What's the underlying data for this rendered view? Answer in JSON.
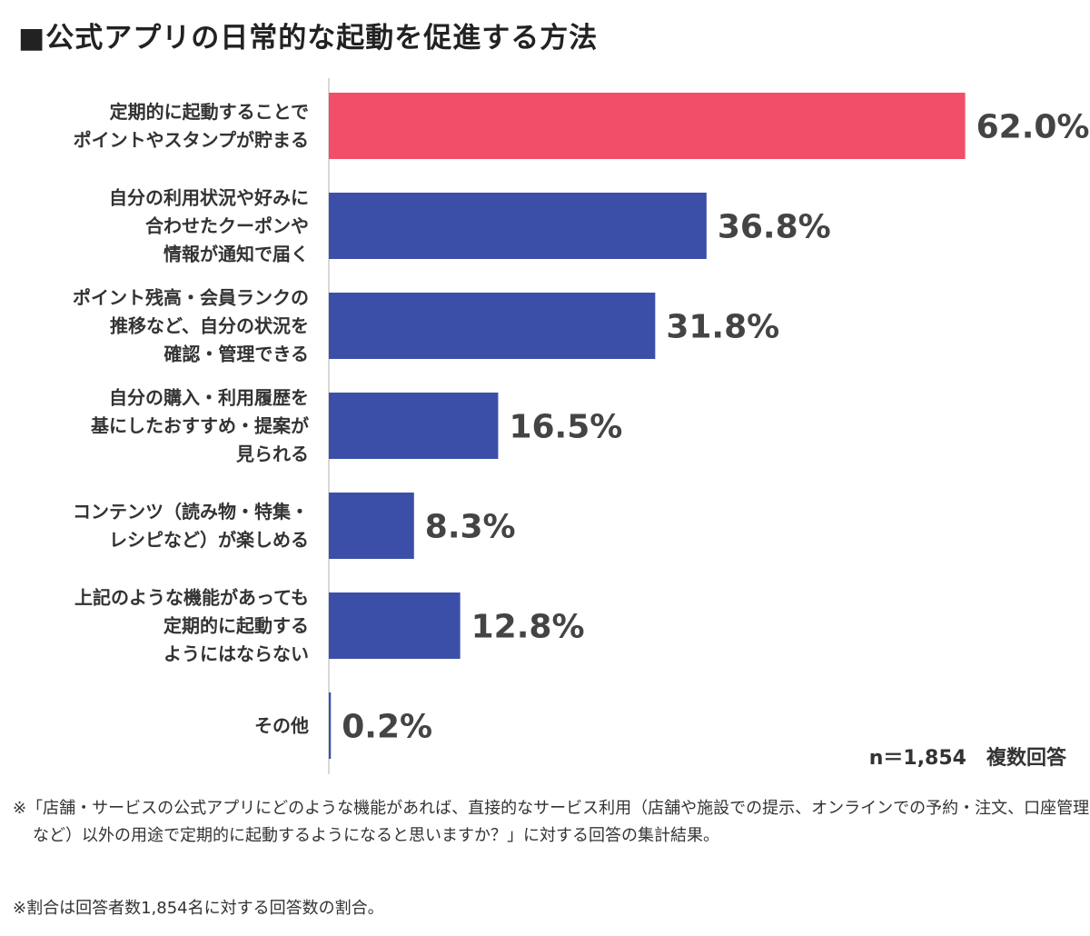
{
  "title": "■公式アプリの日常的な起動を促進する方法",
  "colors": {
    "highlight": "#f24e6a",
    "bar": "#3c4fa8",
    "axis": "#cccccc"
  },
  "chart_data": {
    "type": "bar",
    "orientation": "horizontal",
    "unit": "%",
    "xlim": [
      0,
      100
    ],
    "grid": false,
    "categories": [
      [
        "定期的に起動することで",
        "ポイントやスタンプが貯まる"
      ],
      [
        "自分の利用状況や好みに",
        "合わせたクーポンや",
        "情報が通知で届く"
      ],
      [
        "ポイント残高・会員ランクの",
        "推移など、自分の状況を",
        "確認・管理できる"
      ],
      [
        "自分の購入・利用履歴を",
        "基にしたおすすめ・提案が",
        "見られる"
      ],
      [
        "コンテンツ（読み物・特集・",
        "レシピなど）が楽しめる"
      ],
      [
        "上記のような機能があっても",
        "定期的に起動する",
        "ようにはならない"
      ],
      [
        "その他"
      ]
    ],
    "values": [
      62.0,
      36.8,
      31.8,
      16.5,
      8.3,
      12.8,
      0.2
    ],
    "value_labels": [
      "62.0%",
      "36.8%",
      "31.8%",
      "16.5%",
      "8.3%",
      "12.8%",
      "0.2%"
    ],
    "highlight_index": 0
  },
  "note": "n＝1,854　複数回答",
  "footnotes": [
    "※「店舗・サービスの公式アプリにどのような機能があれば、直接的なサービス利用（店舗や施設での提示、オンラインでの予約・注文、口座管理など）以外の用途で定期的に起動するようになると思いますか？」に対する回答の集計結果。",
    "※割合は回答者数1,854名に対する回答数の割合。"
  ]
}
